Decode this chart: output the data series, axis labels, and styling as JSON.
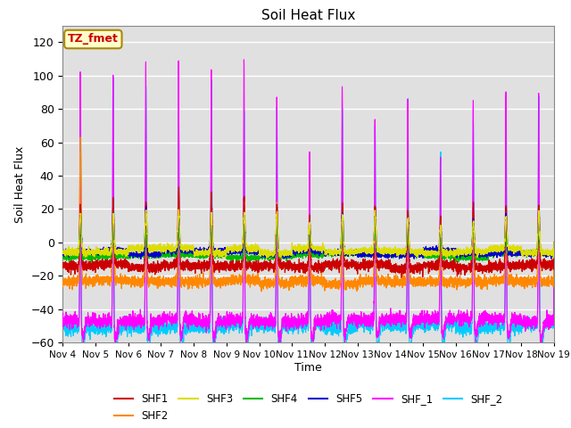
{
  "title": "Soil Heat Flux",
  "ylabel": "Soil Heat Flux",
  "xlabel": "Time",
  "xlim_days": [
    4,
    19
  ],
  "ylim": [
    -60,
    130
  ],
  "yticks": [
    -60,
    -40,
    -20,
    0,
    20,
    40,
    60,
    80,
    100,
    120
  ],
  "xtick_labels": [
    "Nov 4",
    "Nov 5",
    "Nov 6",
    "Nov 7",
    "Nov 8",
    "Nov 9",
    "Nov 10",
    "Nov 11",
    "Nov 12",
    "Nov 13",
    "Nov 14",
    "Nov 15",
    "Nov 16",
    "Nov 17",
    "Nov 18",
    "Nov 19"
  ],
  "series_colors": {
    "SHF1": "#cc0000",
    "SHF2": "#ff8800",
    "SHF3": "#dddd00",
    "SHF4": "#00bb00",
    "SHF5": "#0000cc",
    "SHF_1": "#ff00ff",
    "SHF_2": "#00ccff"
  },
  "bg_color": "#e0e0e0",
  "annotation_text": "TZ_fmet",
  "annotation_color": "#cc0000",
  "annotation_bg": "#ffffcc",
  "annotation_border": "#aa8800"
}
